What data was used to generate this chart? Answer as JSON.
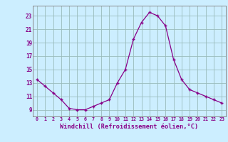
{
  "x": [
    0,
    1,
    2,
    3,
    4,
    5,
    6,
    7,
    8,
    9,
    10,
    11,
    12,
    13,
    14,
    15,
    16,
    17,
    18,
    19,
    20,
    21,
    22,
    23
  ],
  "y": [
    13.5,
    12.5,
    11.5,
    10.5,
    9.2,
    9.0,
    9.0,
    9.5,
    10.0,
    10.5,
    13.0,
    15.0,
    19.5,
    22.0,
    23.5,
    23.0,
    21.5,
    16.5,
    13.5,
    12.0,
    11.5,
    11.0,
    10.5,
    10.0
  ],
  "xlabel": "Windchill (Refroidissement éolien,°C)",
  "xlim": [
    -0.5,
    23.5
  ],
  "ylim": [
    8.0,
    24.5
  ],
  "yticks": [
    9,
    11,
    13,
    15,
    17,
    19,
    21,
    23
  ],
  "xticks": [
    0,
    1,
    2,
    3,
    4,
    5,
    6,
    7,
    8,
    9,
    10,
    11,
    12,
    13,
    14,
    15,
    16,
    17,
    18,
    19,
    20,
    21,
    22,
    23
  ],
  "line_color": "#880088",
  "marker_color": "#880088",
  "bg_color": "#cceeff",
  "grid_color": "#99bbbb",
  "tick_label_color": "#880088",
  "axis_label_color": "#880088",
  "spine_color": "#888888"
}
